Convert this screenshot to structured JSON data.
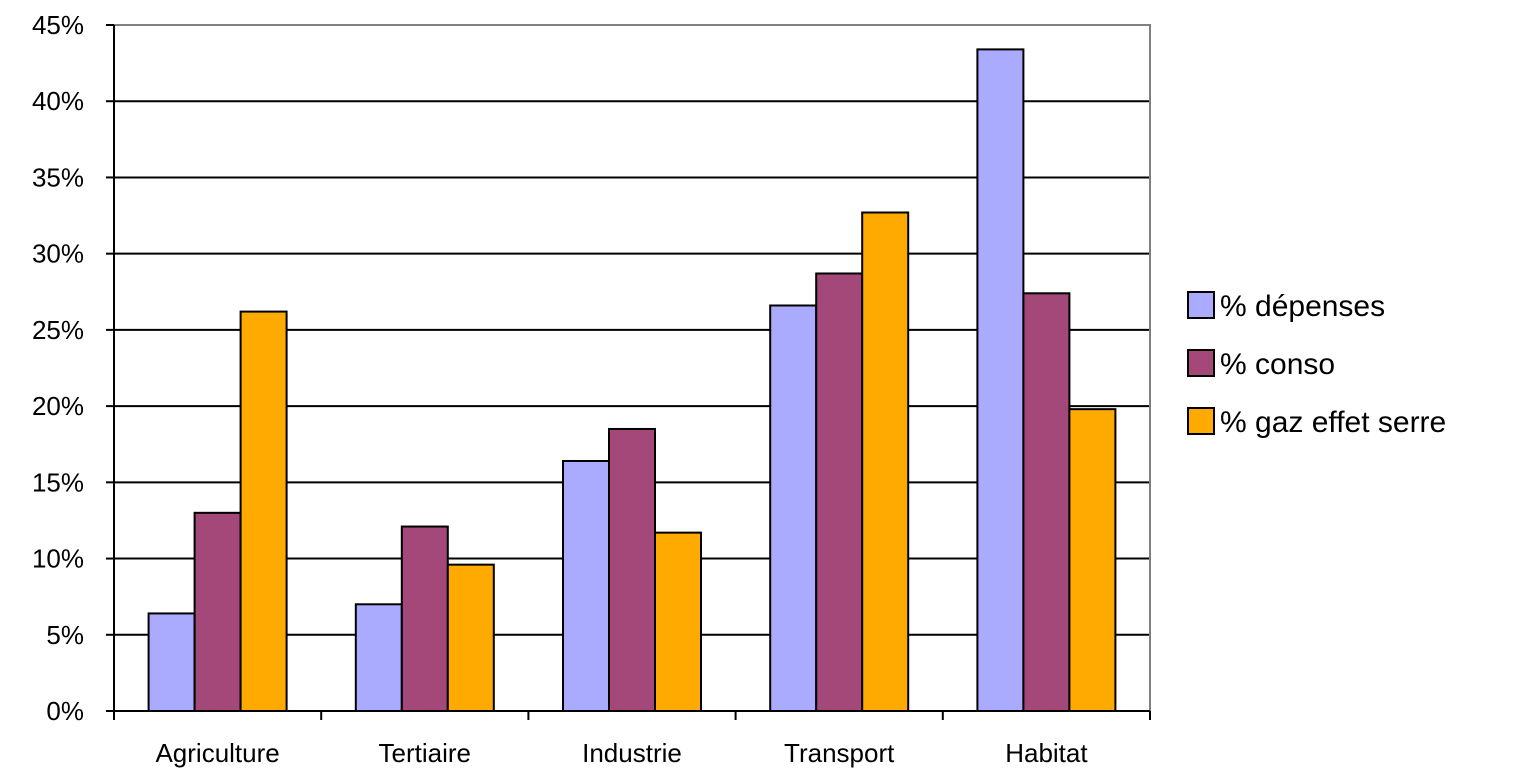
{
  "chart_data": {
    "type": "bar",
    "categories": [
      "Agriculture",
      "Tertiaire",
      "Industrie",
      "Transport",
      "Habitat"
    ],
    "series": [
      {
        "name": "% dépenses",
        "color": "#aaaaff",
        "values": [
          6.4,
          7.0,
          16.4,
          26.6,
          43.4
        ]
      },
      {
        "name": "% conso",
        "color": "#a4487a",
        "values": [
          13.0,
          12.1,
          18.5,
          28.7,
          27.4
        ]
      },
      {
        "name": "% gaz effet serre",
        "color": "#ffaa00",
        "values": [
          26.2,
          9.6,
          11.7,
          32.7,
          19.8
        ]
      }
    ],
    "y_ticks": [
      "0%",
      "5%",
      "10%",
      "15%",
      "20%",
      "25%",
      "30%",
      "35%",
      "40%",
      "45%"
    ],
    "ylim": [
      0,
      45
    ],
    "grid": true,
    "legend_position": "right",
    "title": "",
    "xlabel": "",
    "ylabel": ""
  }
}
